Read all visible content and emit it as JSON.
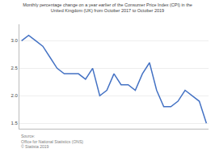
{
  "chart_data": {
    "type": "line",
    "title": "Monthly percentage change on a year earlier of the Consumer Price Index (CPI) in the\nUnited Kingdom (UK) from October 2017 to October 2019",
    "source": "Source:\nOffice for National Statistics (ONS)\n© Statista 2019",
    "categories": [
      null,
      null,
      null,
      null,
      null,
      null,
      null,
      null,
      null,
      null,
      null,
      null,
      null,
      null,
      null,
      null,
      null,
      null,
      null,
      null,
      null,
      null,
      null,
      null,
      null,
      null,
      null
    ],
    "values": [
      3.0,
      3.1,
      3.0,
      2.9,
      2.7,
      2.5,
      2.4,
      2.4,
      2.4,
      2.3,
      2.5,
      2.0,
      2.1,
      2.4,
      2.2,
      2.2,
      2.1,
      2.4,
      2.6,
      2.1,
      1.8,
      1.8,
      1.9,
      2.1,
      2.0,
      1.9,
      1.5
    ],
    "color": "#4472c4",
    "ylim": [
      1.4,
      3.3
    ],
    "yticks": [
      1.5,
      {
        "value": 2,
        "label": "2.0"
      },
      2.5,
      {
        "value": 3,
        "label": "3.0"
      }
    ],
    "grid": true,
    "tick_labels": "y"
  }
}
